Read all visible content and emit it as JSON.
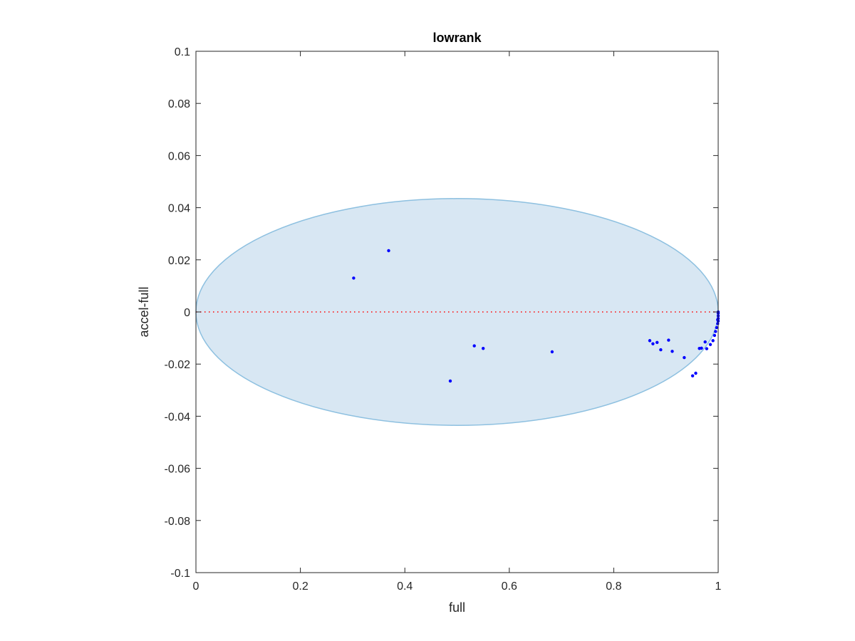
{
  "chart_data": {
    "type": "scatter",
    "title": "lowrank",
    "xlabel": "full",
    "ylabel": "accel-full",
    "xlim": [
      0,
      1
    ],
    "ylim": [
      -0.1,
      0.1
    ],
    "xticks": [
      "0",
      "0.2",
      "0.4",
      "0.6",
      "0.8",
      "1"
    ],
    "xtick_values": [
      0,
      0.2,
      0.4,
      0.6,
      0.8,
      1
    ],
    "yticks": [
      "0.1",
      "0.08",
      "0.06",
      "0.04",
      "0.02",
      "0",
      "-0.02",
      "-0.04",
      "-0.06",
      "-0.08",
      "-0.1"
    ],
    "ytick_values": [
      0.1,
      0.08,
      0.06,
      0.04,
      0.02,
      0,
      -0.02,
      -0.04,
      -0.06,
      -0.08,
      -0.1
    ],
    "grid": false,
    "box": true,
    "ellipse": {
      "center_x": 0.5,
      "center_y": 0.0,
      "radius_x": 0.5,
      "radius_y": 0.0435,
      "fill_color": "#d8e7f3",
      "edge_color": "#8dc0e0"
    },
    "reference_line": {
      "y": 0,
      "x_range": [
        0,
        1
      ],
      "color": "#ff0000",
      "style": "dotted"
    },
    "marker_color": "#0000ff",
    "series": [
      {
        "x": [
          0.302,
          0.369,
          0.487,
          0.533,
          0.55,
          0.682,
          0.869,
          0.875,
          0.883,
          0.89,
          0.905,
          0.912,
          0.935,
          0.951,
          0.957,
          0.964,
          0.968,
          0.975,
          0.978,
          0.985,
          0.99,
          0.993,
          0.995,
          0.997,
          0.999,
          0.999,
          1.0,
          1.0,
          1.0,
          1.0,
          1.0
        ],
        "y": [
          0.013,
          0.0235,
          -0.0265,
          -0.013,
          -0.014,
          -0.0153,
          -0.011,
          -0.0122,
          -0.0117,
          -0.0145,
          -0.0108,
          -0.0151,
          -0.0175,
          -0.0245,
          -0.0235,
          -0.014,
          -0.0139,
          -0.0115,
          -0.0141,
          -0.0125,
          -0.011,
          -0.009,
          -0.0075,
          -0.006,
          -0.0045,
          -0.003,
          -0.0035,
          -0.0025,
          -0.0015,
          -0.0005,
          0.0
        ]
      }
    ]
  }
}
